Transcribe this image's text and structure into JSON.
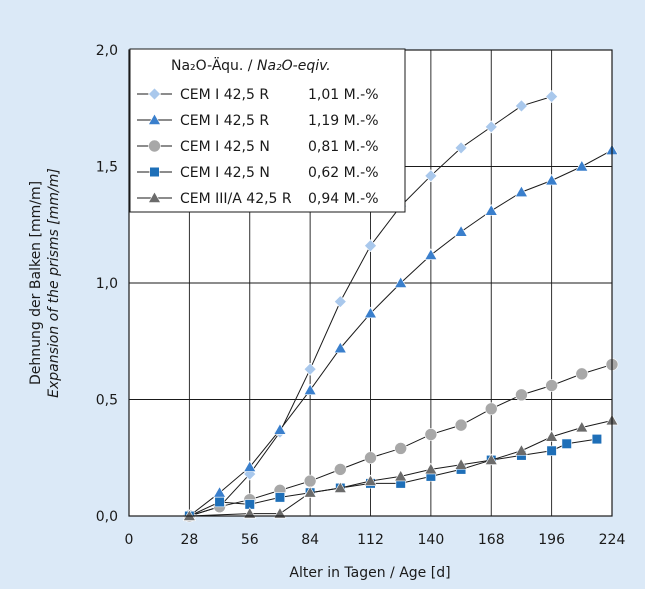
{
  "colors": {
    "background": "#dbe9f7",
    "grid": "#1a1a1a",
    "light_blue": "#a9c8ec",
    "blue_triangle": "#3a7fcc",
    "gray_circle": "#a8a8a8",
    "blue_square": "#1e6fb8",
    "dark_gray_triangle": "#6b6b6b"
  },
  "chart_data": {
    "type": "line",
    "xlabel": "Alter in Tagen / Age [d]",
    "ylabel_de": "Dehnung der Balken [mm/m]",
    "ylabel_en": "Expansion of the prisms [mm/m]",
    "xlim": [
      0,
      224
    ],
    "ylim": [
      0,
      2.0
    ],
    "x_ticks": [
      0,
      28,
      56,
      84,
      112,
      140,
      168,
      196,
      224
    ],
    "x_tick_labels": [
      "0",
      "28",
      "56",
      "84",
      "112",
      "140",
      "168",
      "196",
      "224"
    ],
    "y_ticks": [
      0,
      0.5,
      1.0,
      1.5,
      2.0
    ],
    "y_tick_labels": [
      "0,0",
      "0,5",
      "1,0",
      "1,5",
      "2,0"
    ],
    "grid": true,
    "legend": {
      "placement": "top-left",
      "header_de": "Na₂O-Äqu. / ",
      "header_en": "Na₂O-eqiv.",
      "entries": [
        {
          "cement": "CEM I 42,5 R",
          "value": "1,01 M.-%"
        },
        {
          "cement": "CEM I 42,5 R",
          "value": "1,19 M.-%"
        },
        {
          "cement": "CEM I 42,5 N",
          "value": "0,81 M.-%"
        },
        {
          "cement": "CEM I 42,5 N",
          "value": "0,62 M.-%"
        },
        {
          "cement": "CEM III/A 42,5 R",
          "value": "0,94 M.-%"
        }
      ]
    },
    "series": [
      {
        "marker": "diamond",
        "color": "#a9c8ec",
        "x": [
          28,
          42,
          56,
          70,
          84,
          98,
          112,
          126,
          140,
          154,
          168,
          182,
          196
        ],
        "y": [
          0.0,
          0.04,
          0.18,
          0.36,
          0.63,
          0.92,
          1.16,
          1.33,
          1.46,
          1.58,
          1.67,
          1.76,
          1.8
        ]
      },
      {
        "marker": "triangle",
        "color": "#3a7fcc",
        "x": [
          28,
          42,
          56,
          70,
          84,
          98,
          112,
          126,
          140,
          154,
          168,
          182,
          196,
          210,
          224
        ],
        "y": [
          0.0,
          0.1,
          0.21,
          0.37,
          0.54,
          0.72,
          0.87,
          1.0,
          1.12,
          1.22,
          1.31,
          1.39,
          1.44,
          1.5,
          1.57
        ]
      },
      {
        "marker": "circle",
        "color": "#a8a8a8",
        "x": [
          28,
          42,
          56,
          70,
          84,
          98,
          112,
          126,
          140,
          154,
          168,
          182,
          196,
          210,
          224
        ],
        "y": [
          0.0,
          0.04,
          0.07,
          0.11,
          0.15,
          0.2,
          0.25,
          0.29,
          0.35,
          0.39,
          0.46,
          0.52,
          0.56,
          0.61,
          0.65
        ]
      },
      {
        "marker": "square",
        "color": "#1e6fb8",
        "x": [
          28,
          42,
          56,
          70,
          84,
          98,
          112,
          126,
          140,
          154,
          168,
          182,
          196,
          203,
          217
        ],
        "y": [
          0.0,
          0.06,
          0.05,
          0.08,
          0.1,
          0.12,
          0.14,
          0.14,
          0.17,
          0.2,
          0.24,
          0.26,
          0.28,
          0.31,
          0.33
        ]
      },
      {
        "marker": "triangle",
        "color": "#6b6b6b",
        "x": [
          28,
          56,
          70,
          84,
          98,
          112,
          126,
          140,
          154,
          168,
          182,
          196,
          210,
          224
        ],
        "y": [
          0.0,
          0.01,
          0.01,
          0.1,
          0.12,
          0.15,
          0.17,
          0.2,
          0.22,
          0.24,
          0.28,
          0.34,
          0.38,
          0.41
        ]
      }
    ]
  }
}
